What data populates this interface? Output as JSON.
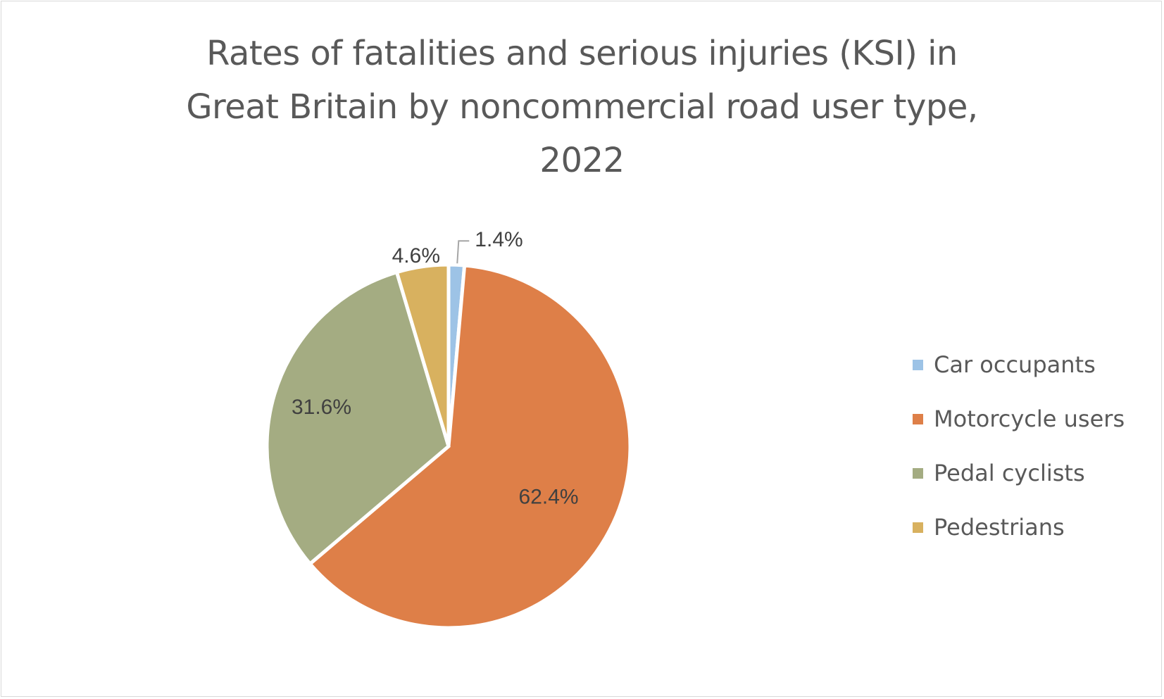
{
  "chart_data": {
    "type": "pie",
    "title_lines": [
      "Rates of fatalities and serious injuries (KSI) in",
      "Great Britain by noncommercial road user type,",
      "2022"
    ],
    "categories": [
      "Car occupants",
      "Motorcycle users",
      "Pedal cyclists",
      "Pedestrians"
    ],
    "values": [
      1.4,
      62.4,
      31.6,
      4.6
    ],
    "data_labels": [
      "1.4%",
      "62.4%",
      "31.6%",
      "4.6%"
    ],
    "colors": [
      "#9DC3E6",
      "#DE7F48",
      "#A4AC82",
      "#D8B15F"
    ],
    "legend_position": "right"
  }
}
